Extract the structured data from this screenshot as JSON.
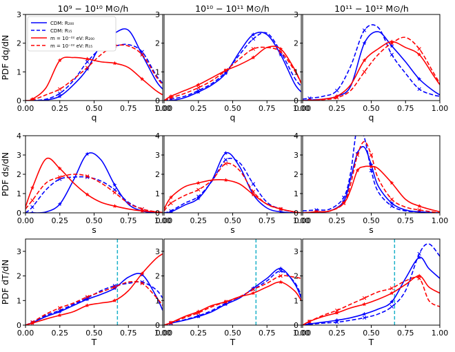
{
  "figure": {
    "column_titles": [
      "10⁹ − 10¹⁰ M⊙/h",
      "10¹⁰ − 10¹¹ M⊙/h",
      "10¹¹ − 10¹² M⊙/h"
    ],
    "row_ylabels": [
      "PDF dq/dN",
      "PDF ds/dN",
      "PDF dT/dN"
    ],
    "row_xlabels": [
      "q",
      "s",
      "T"
    ],
    "x_ticks": [
      "0.00",
      "0.25",
      "0.50",
      "0.75",
      "1.00"
    ],
    "colors": {
      "cdm": "#0000ff",
      "fdm": "#ff0000",
      "threshold": "#1ab0c8"
    }
  },
  "legend": {
    "items": [
      {
        "label": "CDM: R₂₀₀",
        "style": "solid",
        "color": "#0000ff"
      },
      {
        "label": "CDM: R₁₅",
        "style": "dashed",
        "color": "#0000ff"
      },
      {
        "label": "m = 10⁻²² eV: R₂₀₀",
        "style": "solid",
        "color": "#ff0000"
      },
      {
        "label": "m = 10⁻²² eV: R₁₅",
        "style": "dashed",
        "color": "#ff0000"
      }
    ]
  },
  "chart_data": [
    {
      "type": "line",
      "row": 0,
      "col": 0,
      "xlabel": "q",
      "ylabel": "PDF dq/dN",
      "xlim": [
        0,
        1
      ],
      "ylim": [
        0,
        3
      ],
      "yticks": [
        0,
        1,
        2,
        3
      ],
      "threshold": null,
      "x": [
        0.0,
        0.05,
        0.15,
        0.25,
        0.35,
        0.45,
        0.55,
        0.65,
        0.75,
        0.85,
        0.95,
        1.0
      ],
      "series": [
        {
          "name": "CDM: R₂₀₀",
          "color": "#0000ff",
          "style": "solid",
          "values": [
            0.0,
            0.0,
            0.02,
            0.15,
            0.55,
            1.1,
            1.95,
            2.35,
            2.45,
            1.6,
            0.7,
            0.4
          ]
        },
        {
          "name": "CDM: R₁₅",
          "color": "#0000ff",
          "style": "dashed",
          "values": [
            0.0,
            0.0,
            0.05,
            0.25,
            0.7,
            1.35,
            1.8,
            1.9,
            1.95,
            1.7,
            0.9,
            0.6
          ]
        },
        {
          "name": "m = 10⁻²² eV: R₂₀₀",
          "color": "#ff0000",
          "style": "solid",
          "values": [
            0.0,
            0.05,
            0.45,
            1.4,
            1.5,
            1.45,
            1.35,
            1.3,
            1.15,
            0.75,
            0.35,
            0.2
          ]
        },
        {
          "name": "m = 10⁻²² eV: R₁₅",
          "color": "#ff0000",
          "style": "dashed",
          "values": [
            0.0,
            0.02,
            0.2,
            0.4,
            0.75,
            1.15,
            1.6,
            1.9,
            1.9,
            1.6,
            0.85,
            0.55
          ]
        }
      ]
    },
    {
      "type": "line",
      "row": 0,
      "col": 1,
      "xlabel": "q",
      "ylabel": "",
      "xlim": [
        0,
        1
      ],
      "ylim": [
        0,
        3
      ],
      "yticks": [
        0,
        1,
        2,
        3
      ],
      "threshold": null,
      "x": [
        0.0,
        0.05,
        0.15,
        0.25,
        0.35,
        0.45,
        0.55,
        0.65,
        0.75,
        0.85,
        0.95,
        1.0
      ],
      "series": [
        {
          "name": "CDM: R₂₀₀",
          "color": "#0000ff",
          "style": "solid",
          "values": [
            0.0,
            0.0,
            0.1,
            0.3,
            0.55,
            0.95,
            1.7,
            2.3,
            2.3,
            1.6,
            0.6,
            0.3
          ]
        },
        {
          "name": "CDM: R₁₅",
          "color": "#0000ff",
          "style": "dashed",
          "values": [
            0.0,
            0.05,
            0.15,
            0.35,
            0.6,
            1.0,
            1.6,
            2.15,
            2.35,
            1.7,
            0.8,
            0.5
          ]
        },
        {
          "name": "m = 10⁻²² eV: R₂₀₀",
          "color": "#ff0000",
          "style": "solid",
          "values": [
            0.0,
            0.15,
            0.35,
            0.55,
            0.8,
            1.05,
            1.25,
            1.5,
            1.85,
            1.8,
            1.1,
            0.6
          ]
        },
        {
          "name": "m = 10⁻²² eV: R₁₅",
          "color": "#ff0000",
          "style": "dashed",
          "values": [
            0.0,
            0.1,
            0.25,
            0.45,
            0.7,
            1.05,
            1.45,
            1.8,
            1.85,
            1.7,
            1.05,
            0.6
          ]
        }
      ]
    },
    {
      "type": "line",
      "row": 0,
      "col": 2,
      "xlabel": "q",
      "ylabel": "",
      "xlim": [
        0,
        1
      ],
      "ylim": [
        0,
        3
      ],
      "yticks": [
        0,
        1,
        2,
        3
      ],
      "threshold": null,
      "x": [
        0.0,
        0.05,
        0.15,
        0.25,
        0.35,
        0.45,
        0.55,
        0.65,
        0.75,
        0.85,
        0.95,
        1.0
      ],
      "series": [
        {
          "name": "CDM: R₂₀₀",
          "color": "#0000ff",
          "style": "solid",
          "values": [
            0.0,
            0.02,
            0.05,
            0.15,
            0.5,
            2.0,
            2.4,
            1.9,
            1.35,
            0.75,
            0.35,
            0.2
          ]
        },
        {
          "name": "CDM: R₁₅",
          "color": "#0000ff",
          "style": "dashed",
          "values": [
            0.05,
            0.08,
            0.15,
            0.35,
            1.2,
            2.45,
            2.55,
            1.6,
            0.95,
            0.4,
            0.2,
            0.15
          ]
        },
        {
          "name": "m = 10⁻²² eV: R₂₀₀",
          "color": "#ff0000",
          "style": "solid",
          "values": [
            0.0,
            0.0,
            0.05,
            0.15,
            0.55,
            1.4,
            1.8,
            2.05,
            1.85,
            1.6,
            0.9,
            0.55
          ]
        },
        {
          "name": "m = 10⁻²² eV: R₁₅",
          "color": "#ff0000",
          "style": "dashed",
          "values": [
            0.0,
            0.0,
            0.03,
            0.1,
            0.35,
            1.0,
            1.6,
            2.0,
            2.2,
            1.8,
            1.0,
            0.6
          ]
        }
      ]
    },
    {
      "type": "line",
      "row": 1,
      "col": 0,
      "xlabel": "s",
      "ylabel": "PDF ds/dN",
      "xlim": [
        0,
        1
      ],
      "ylim": [
        0,
        4
      ],
      "yticks": [
        0,
        1,
        2,
        3,
        4
      ],
      "threshold": null,
      "x": [
        0.0,
        0.05,
        0.15,
        0.25,
        0.35,
        0.45,
        0.55,
        0.65,
        0.75,
        0.85,
        0.95,
        1.0
      ],
      "series": [
        {
          "name": "CDM: R₂₀₀",
          "color": "#0000ff",
          "style": "solid",
          "values": [
            0.0,
            0.0,
            0.05,
            0.45,
            1.7,
            3.05,
            2.75,
            1.45,
            0.45,
            0.1,
            0.0,
            0.0
          ]
        },
        {
          "name": "CDM: R₁₅",
          "color": "#0000ff",
          "style": "dashed",
          "values": [
            0.0,
            0.3,
            1.2,
            1.75,
            1.85,
            1.85,
            1.65,
            1.2,
            0.55,
            0.2,
            0.05,
            0.0
          ]
        },
        {
          "name": "m = 10⁻²² eV: R₂₀₀",
          "color": "#ff0000",
          "style": "solid",
          "values": [
            0.3,
            1.3,
            2.8,
            2.3,
            1.55,
            0.95,
            0.55,
            0.35,
            0.2,
            0.1,
            0.05,
            0.02
          ]
        },
        {
          "name": "m = 10⁻²² eV: R₁₅",
          "color": "#ff0000",
          "style": "dashed",
          "values": [
            0.2,
            0.65,
            1.55,
            1.85,
            2.0,
            1.9,
            1.55,
            1.05,
            0.5,
            0.2,
            0.05,
            0.0
          ]
        }
      ]
    },
    {
      "type": "line",
      "row": 1,
      "col": 1,
      "xlabel": "s",
      "ylabel": "",
      "xlim": [
        0,
        1
      ],
      "ylim": [
        0,
        4
      ],
      "yticks": [
        0,
        1,
        2,
        3,
        4
      ],
      "threshold": null,
      "x": [
        0.0,
        0.05,
        0.15,
        0.25,
        0.35,
        0.45,
        0.55,
        0.65,
        0.75,
        0.85,
        0.95,
        1.0
      ],
      "series": [
        {
          "name": "CDM: R₂₀₀",
          "color": "#0000ff",
          "style": "solid",
          "values": [
            0.0,
            0.05,
            0.4,
            0.75,
            1.7,
            3.1,
            2.4,
            0.95,
            0.25,
            0.05,
            0.0,
            0.0
          ]
        },
        {
          "name": "CDM: R₁₅",
          "color": "#0000ff",
          "style": "dashed",
          "values": [
            0.0,
            0.1,
            0.5,
            0.85,
            1.65,
            2.75,
            2.6,
            1.5,
            0.55,
            0.2,
            0.05,
            0.0
          ]
        },
        {
          "name": "m = 10⁻²² eV: R₂₀₀",
          "color": "#ff0000",
          "style": "solid",
          "values": [
            0.2,
            0.8,
            1.35,
            1.55,
            1.7,
            1.7,
            1.5,
            0.95,
            0.45,
            0.2,
            0.05,
            0.0
          ]
        },
        {
          "name": "m = 10⁻²² eV: R₁₅",
          "color": "#ff0000",
          "style": "dashed",
          "values": [
            0.1,
            0.5,
            0.9,
            1.2,
            1.7,
            2.55,
            2.2,
            1.1,
            0.45,
            0.2,
            0.05,
            0.0
          ]
        }
      ]
    },
    {
      "type": "line",
      "row": 1,
      "col": 2,
      "xlabel": "s",
      "ylabel": "",
      "xlim": [
        0,
        1
      ],
      "ylim": [
        0,
        4
      ],
      "yticks": [
        0,
        1,
        2,
        3,
        4
      ],
      "threshold": null,
      "x": [
        0.0,
        0.1,
        0.2,
        0.3,
        0.35,
        0.4,
        0.45,
        0.5,
        0.55,
        0.65,
        0.75,
        0.85,
        1.0
      ],
      "series": [
        {
          "name": "CDM: R₂₀₀",
          "color": "#0000ff",
          "style": "solid",
          "values": [
            0.0,
            0.05,
            0.1,
            0.6,
            1.8,
            3.1,
            3.4,
            2.5,
            1.4,
            0.5,
            0.15,
            0.05,
            0.0
          ]
        },
        {
          "name": "CDM: R₁₅",
          "color": "#0000ff",
          "style": "dashed",
          "values": [
            0.1,
            0.15,
            0.2,
            0.8,
            2.1,
            4.5,
            3.9,
            2.2,
            1.1,
            0.35,
            0.1,
            0.05,
            0.0
          ]
        },
        {
          "name": "m = 10⁻²² eV: R₂₀₀",
          "color": "#ff0000",
          "style": "solid",
          "values": [
            0.0,
            0.05,
            0.1,
            0.5,
            1.2,
            2.2,
            2.4,
            2.4,
            2.3,
            1.55,
            0.7,
            0.35,
            0.05
          ]
        },
        {
          "name": "m = 10⁻²² eV: R₁₅",
          "color": "#ff0000",
          "style": "dashed",
          "values": [
            0.0,
            0.05,
            0.1,
            0.5,
            1.5,
            3.0,
            3.7,
            3.0,
            1.8,
            0.7,
            0.3,
            0.15,
            0.0
          ]
        }
      ]
    },
    {
      "type": "line",
      "row": 2,
      "col": 0,
      "xlabel": "T",
      "ylabel": "PDF dT/dN",
      "xlim": [
        0,
        1
      ],
      "ylim": [
        0,
        3.5
      ],
      "yticks": [
        0,
        1,
        2,
        3
      ],
      "threshold": 0.67,
      "x": [
        0.0,
        0.05,
        0.15,
        0.25,
        0.35,
        0.45,
        0.55,
        0.65,
        0.75,
        0.85,
        0.95,
        1.0
      ],
      "series": [
        {
          "name": "CDM: R₂₀₀",
          "color": "#0000ff",
          "style": "solid",
          "values": [
            0.0,
            0.1,
            0.35,
            0.55,
            0.8,
            1.05,
            1.25,
            1.5,
            1.95,
            2.05,
            1.2,
            0.6
          ]
        },
        {
          "name": "CDM: R₁₅",
          "color": "#0000ff",
          "style": "dashed",
          "values": [
            0.0,
            0.12,
            0.4,
            0.6,
            0.85,
            1.1,
            1.4,
            1.6,
            1.7,
            1.75,
            1.45,
            1.1
          ]
        },
        {
          "name": "m = 10⁻²² eV: R₂₀₀",
          "color": "#ff0000",
          "style": "solid",
          "values": [
            0.0,
            0.08,
            0.25,
            0.4,
            0.55,
            0.8,
            0.9,
            1.0,
            1.4,
            2.1,
            2.7,
            2.9
          ]
        },
        {
          "name": "m = 10⁻²² eV: R₁₅",
          "color": "#ff0000",
          "style": "dashed",
          "values": [
            0.0,
            0.12,
            0.45,
            0.7,
            0.9,
            1.15,
            1.35,
            1.55,
            1.75,
            1.7,
            1.15,
            0.8
          ]
        }
      ]
    },
    {
      "type": "line",
      "row": 2,
      "col": 1,
      "xlabel": "T",
      "ylabel": "",
      "xlim": [
        0,
        1
      ],
      "ylim": [
        0,
        3.5
      ],
      "yticks": [
        0,
        1,
        2,
        3
      ],
      "threshold": 0.67,
      "x": [
        0.0,
        0.05,
        0.15,
        0.25,
        0.35,
        0.45,
        0.55,
        0.65,
        0.75,
        0.85,
        0.95,
        1.0
      ],
      "series": [
        {
          "name": "CDM: R₂₀₀",
          "color": "#0000ff",
          "style": "solid",
          "values": [
            0.0,
            0.08,
            0.2,
            0.35,
            0.55,
            0.85,
            1.1,
            1.5,
            1.9,
            2.3,
            1.7,
            1.1
          ]
        },
        {
          "name": "CDM: R₁₅",
          "color": "#0000ff",
          "style": "dashed",
          "values": [
            0.0,
            0.08,
            0.22,
            0.38,
            0.6,
            0.9,
            1.15,
            1.45,
            1.8,
            2.2,
            1.75,
            1.2
          ]
        },
        {
          "name": "m = 10⁻²² eV: R₂₀₀",
          "color": "#ff0000",
          "style": "solid",
          "values": [
            0.0,
            0.1,
            0.35,
            0.55,
            0.8,
            0.95,
            1.15,
            1.3,
            1.55,
            1.75,
            1.4,
            1.0
          ]
        },
        {
          "name": "m = 10⁻²² eV: R₁₅",
          "color": "#ff0000",
          "style": "dashed",
          "values": [
            0.0,
            0.1,
            0.3,
            0.5,
            0.75,
            0.95,
            1.15,
            1.45,
            1.7,
            2.0,
            1.95,
            1.9
          ]
        }
      ]
    },
    {
      "type": "line",
      "row": 2,
      "col": 2,
      "xlabel": "T",
      "ylabel": "",
      "xlim": [
        0,
        1
      ],
      "ylim": [
        0,
        3.5
      ],
      "yticks": [
        0,
        1,
        2,
        3
      ],
      "threshold": 0.67,
      "x": [
        0.0,
        0.05,
        0.15,
        0.25,
        0.35,
        0.45,
        0.55,
        0.65,
        0.75,
        0.85,
        0.92,
        1.0
      ],
      "series": [
        {
          "name": "CDM: R₂₀₀",
          "color": "#0000ff",
          "style": "solid",
          "values": [
            0.0,
            0.05,
            0.12,
            0.2,
            0.3,
            0.45,
            0.65,
            0.95,
            1.9,
            2.75,
            2.3,
            1.9
          ]
        },
        {
          "name": "CDM: R₁₅",
          "color": "#0000ff",
          "style": "dashed",
          "values": [
            0.0,
            0.03,
            0.08,
            0.12,
            0.2,
            0.3,
            0.45,
            0.75,
            1.4,
            2.9,
            3.3,
            2.8
          ]
        },
        {
          "name": "m = 10⁻²² eV: R₂₀₀",
          "color": "#ff0000",
          "style": "solid",
          "values": [
            0.0,
            0.15,
            0.35,
            0.5,
            0.7,
            0.85,
            1.05,
            1.3,
            1.65,
            2.0,
            1.55,
            1.3
          ]
        },
        {
          "name": "m = 10⁻²² eV: R₁₅",
          "color": "#ff0000",
          "style": "dashed",
          "values": [
            0.0,
            0.15,
            0.4,
            0.6,
            0.85,
            1.1,
            1.35,
            1.5,
            1.8,
            1.9,
            1.0,
            0.75
          ]
        }
      ]
    }
  ]
}
